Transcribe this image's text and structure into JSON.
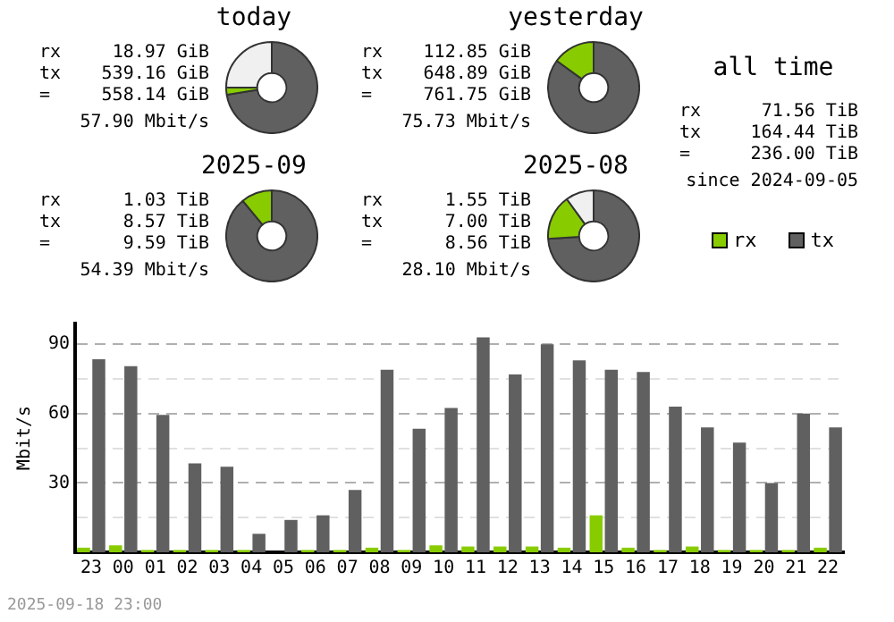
{
  "chart_data": [
    {
      "type": "donut",
      "title": "today",
      "categories": [
        null,
        null,
        null
      ],
      "values": [
        2.5,
        72.5,
        25
      ],
      "colors": [
        "#88cc00",
        "#606060",
        "#f0f0f0"
      ],
      "annotations": [
        "rx",
        "18.97 GiB",
        "tx",
        "539.16 GiB",
        "=",
        "558.14 GiB",
        "57.90 Mbit/s"
      ]
    },
    {
      "type": "donut",
      "title": "yesterday",
      "categories": [
        null,
        null,
        null
      ],
      "values": [
        15,
        85,
        0
      ],
      "colors": [
        "#88cc00",
        "#606060",
        "#f0f0f0"
      ],
      "annotations": [
        "rx",
        "112.85 GiB",
        "tx",
        "648.89 GiB",
        "=",
        "761.75 GiB",
        "75.73 Mbit/s"
      ]
    },
    {
      "type": "donut",
      "title": "2025-09",
      "categories": [
        null,
        null,
        null
      ],
      "values": [
        11,
        89,
        0
      ],
      "colors": [
        "#88cc00",
        "#606060",
        "#f0f0f0"
      ],
      "annotations": [
        "rx",
        "1.03 TiB",
        "tx",
        "8.57 TiB",
        "=",
        "9.59 TiB",
        "54.39 Mbit/s"
      ]
    },
    {
      "type": "donut",
      "title": "2025-08",
      "categories": [
        null,
        null,
        null
      ],
      "values": [
        16,
        74,
        10
      ],
      "colors": [
        "#88cc00",
        "#606060",
        "#f0f0f0"
      ],
      "annotations": [
        "rx",
        "1.55 TiB",
        "tx",
        "7.00 TiB",
        "=",
        "8.56 TiB",
        "28.10 Mbit/s"
      ]
    },
    {
      "type": "other",
      "title": "all time",
      "annotations": [
        "rx",
        "71.56 TiB",
        "tx",
        "164.44 TiB",
        "=",
        "236.00 TiB",
        "since 2024-09-05"
      ]
    },
    {
      "type": "bar",
      "ylabel": "Mbit/s",
      "categories": [
        "23",
        "00",
        "01",
        "02",
        "03",
        "04",
        "05",
        "06",
        "07",
        "08",
        "09",
        "10",
        "11",
        "12",
        "13",
        "14",
        "15",
        "16",
        "17",
        "18",
        "19",
        "20",
        "21",
        "22"
      ],
      "series": [
        {
          "name": "rx",
          "color": "#88cc00",
          "values": [
            2,
            3,
            1,
            1,
            1,
            1,
            0,
            1,
            1,
            2,
            1,
            3,
            2.5,
            2.5,
            2.5,
            2,
            16,
            2,
            1,
            2.5,
            1,
            1,
            1,
            2
          ]
        },
        {
          "name": "tx",
          "color": "#606060",
          "values": [
            83.5,
            80.5,
            59.5,
            38.5,
            37,
            8,
            14,
            16,
            27,
            79,
            53.5,
            62.5,
            93,
            77,
            90,
            83,
            79,
            78,
            63,
            54,
            47.5,
            30,
            60,
            54
          ]
        }
      ],
      "ylim": [
        0,
        99
      ],
      "yticks": [
        {
          "value": 15,
          "label": null
        },
        30,
        {
          "value": 45,
          "label": null
        },
        60,
        {
          "value": 75,
          "label": null
        },
        90
      ],
      "grid": "y",
      "legend": "top right",
      "annotations": [
        "2025-09-18 23:00"
      ]
    }
  ]
}
